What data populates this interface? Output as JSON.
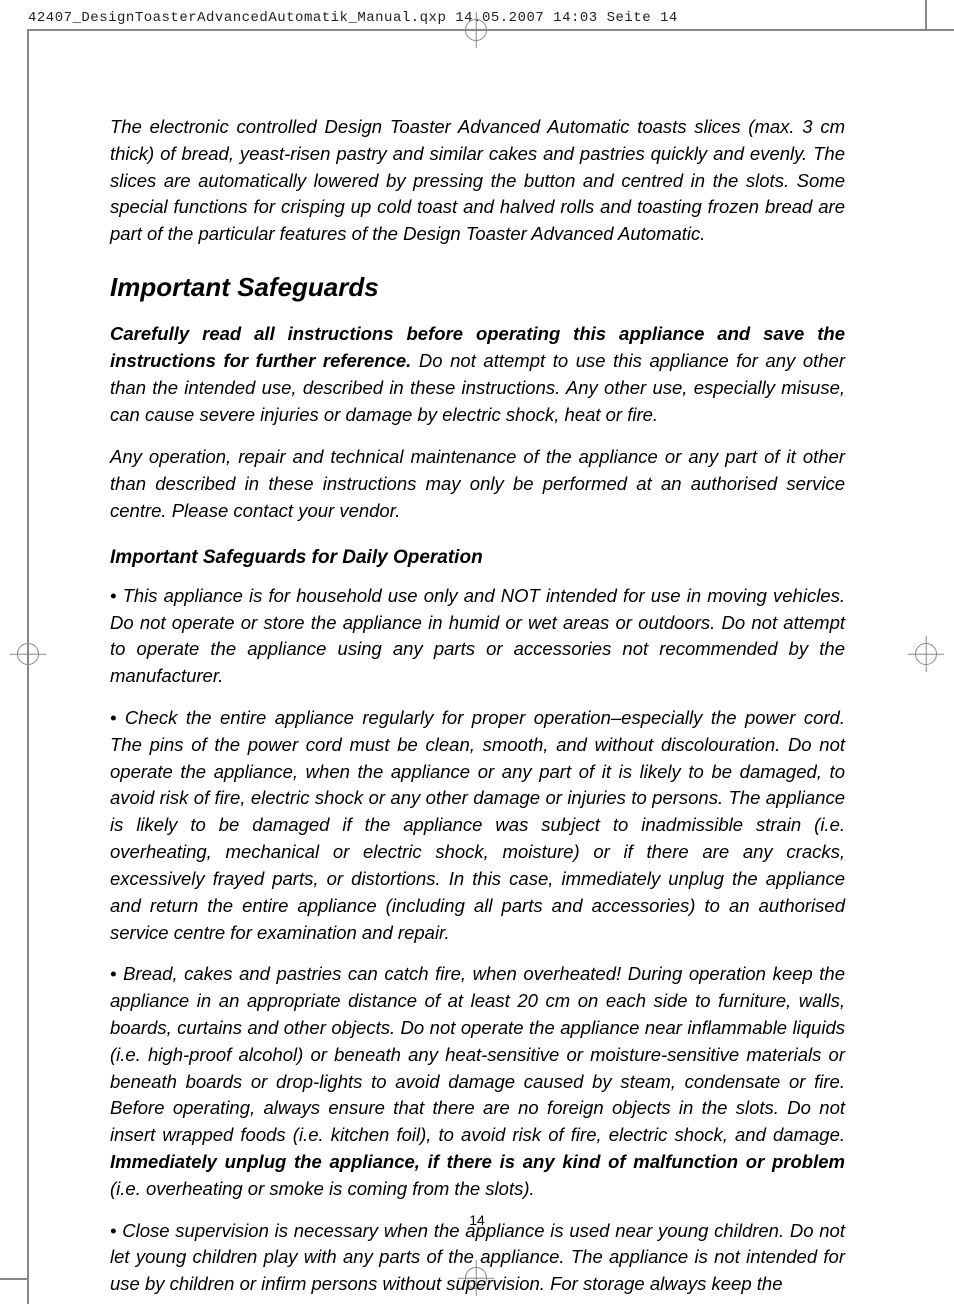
{
  "header": {
    "text": "42407_DesignToasterAdvancedAutomatik_Manual.qxp  14.05.2007  14:03  Seite 14"
  },
  "intro": "The electronic controlled Design Toaster Advanced Automatic toasts slices (max. 3 cm thick) of bread, yeast-risen pastry and similar cakes and pastries quickly and evenly. The slices are automatically lowered by pressing the button and centred in the slots. Some special functions for crisping up cold toast and halved rolls and toasting frozen bread are part of the particular features of the Design Toaster Advanced Automatic.",
  "h1": "Important Safeguards",
  "p1_bold": "Carefully read all instructions before operating this appliance and save the instructions for further reference.",
  "p1_rest": " Do not attempt to use this appliance for any other than the intended use, described in these instructions. Any other use, especially misuse, can cause severe injuries or damage by electric shock, heat or fire.",
  "p2": "Any operation, repair and technical maintenance of the appliance or any part of it other than described in these instructions may only be performed at an authorised service centre. Please contact your vendor.",
  "h2": "Important Safeguards for Daily Operation",
  "b1": "• This appliance is for household use only and NOT intended for use in moving vehicles. Do not operate or store the appliance in humid or wet areas or outdoors. Do not attempt to operate the appliance using any parts or accessories not recommended by the manufacturer.",
  "b2": "• Check the entire appliance regularly for proper operation–especially the power cord. The pins of the power cord must be clean, smooth, and without discolouration. Do not operate the appliance, when the appliance or any part of it is likely to be damaged, to avoid risk of fire, electric shock or any other damage or injuries to persons. The appliance is likely to be damaged if the appliance was subject to inadmissible strain (i.e. overheating, mechanical or electric shock, moisture) or if there are any cracks, excessively frayed parts, or distortions. In this case, immediately unplug the appliance and return the entire appliance (including all parts and accessories) to an authorised service centre for examination and repair.",
  "b3_a": "• Bread, cakes and pastries can catch fire, when overheated! During operation keep the appliance in an appropriate distance of at least 20 cm on each side to furniture, walls, boards, curtains and other objects. Do not operate the appliance near inflammable liquids (i.e. high-proof alcohol) or beneath any heat-sensitive or moisture-sensitive materials or beneath boards or drop-lights to avoid damage caused by steam, condensate or fire. Before operating, always ensure that there are no foreign objects in the slots. Do not insert wrapped foods (i.e. kitchen foil), to avoid risk of fire, electric shock, and damage. ",
  "b3_bold": "Immediately unplug the appliance, if there is any kind of malfunction or problem",
  "b3_c": " (i.e. overheating or smoke is coming from the slots).",
  "b4": "• Close supervision is necessary when the appliance is used near young children. Do not let young children play with any parts of the appliance. The appliance is not intended for use by children or infirm persons without supervision. For storage always keep the",
  "page_num": "14"
}
